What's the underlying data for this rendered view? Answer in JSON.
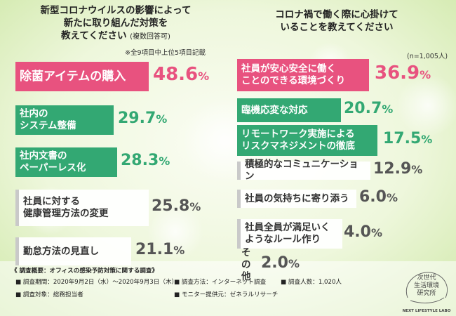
{
  "colors": {
    "pink": "#e8527f",
    "green": "#33a873",
    "gray_text": "#555555",
    "bg": "#eef7dd"
  },
  "left": {
    "question": [
      "新型コロナウイルスの影響によって",
      "新たに取り組んだ対策を",
      "教えてください"
    ],
    "question_note": "(複数回答可)",
    "note": "※全9項目中上位5項目記載"
  },
  "right": {
    "question": [
      "コロナ禍で働く際に心掛けて",
      "いることを教えてください"
    ],
    "n_note": "(n=1,005人)"
  },
  "chart_data": [
    {
      "type": "bar",
      "title": "新型コロナウイルスの影響によって新たに取り組んだ対策を教えてください (複数回答可)",
      "categories": [
        "除菌アイテムの購入",
        "社内のシステム整備",
        "社内文書のペーパーレス化",
        "社員に対する健康管理方法の変更",
        "勤怠方法の見直し"
      ],
      "labels_lines": [
        [
          "除菌アイテムの購入"
        ],
        [
          "社内の",
          "システム整備"
        ],
        [
          "社内文書の",
          "ペーパーレス化"
        ],
        [
          "社員に対する",
          "健康管理方法の変更"
        ],
        [
          "勤怠方法の見直し"
        ]
      ],
      "values": [
        48.6,
        29.7,
        28.3,
        25.8,
        21.1
      ],
      "styles": [
        "pink",
        "green",
        "green",
        "gray",
        "gray"
      ],
      "value_colors": [
        "#e8527f",
        "#33a873",
        "#33a873",
        "#555555",
        "#555555"
      ]
    },
    {
      "type": "bar",
      "title": "コロナ禍で働く際に心掛けていることを教えてください",
      "categories": [
        "社員が安心安全に働くことのできる環境づくり",
        "臨機応変な対応",
        "リモートワーク実施によるリスクマネジメントの徹底",
        "積極的なコミュニケーション",
        "社員の気持ちに寄り添う",
        "社員全員が満足いくようなルール作り",
        "その他"
      ],
      "labels_lines": [
        [
          "社員が安心安全に働く",
          "ことのできる環境づくり"
        ],
        [
          "臨機応変な対応"
        ],
        [
          "リモートワーク実施による",
          "リスクマネジメントの徹底"
        ],
        [
          "積極的なコミュニケーション"
        ],
        [
          "社員の気持ちに寄り添う"
        ],
        [
          "社員全員が満足いく",
          "ようなルール作り"
        ],
        [
          "その他"
        ]
      ],
      "values": [
        36.9,
        20.7,
        17.5,
        12.9,
        6.0,
        4.0,
        2.0
      ],
      "styles": [
        "pink",
        "green",
        "green",
        "gray",
        "gray",
        "gray",
        "none"
      ],
      "value_colors": [
        "#e8527f",
        "#33a873",
        "#33a873",
        "#555555",
        "#555555",
        "#555555",
        "#555555"
      ]
    }
  ],
  "footer": {
    "title": "《 調査概要：オフィスの感染予防対策に関する調査》",
    "items": [
      "■ 調査期間：2020年9月2日（水）～2020年9月3日（木）",
      "■ 調査方法：インターネット調査",
      "■ 調査人数：1,020人",
      "■ 調査対象：総務担当者",
      "■ モニター提供元：ゼネラルリサーチ"
    ]
  },
  "logo": {
    "lines": [
      "次世代",
      "生活環境",
      "研究所"
    ],
    "en": "NEXT LIFESTYLE LABO"
  }
}
